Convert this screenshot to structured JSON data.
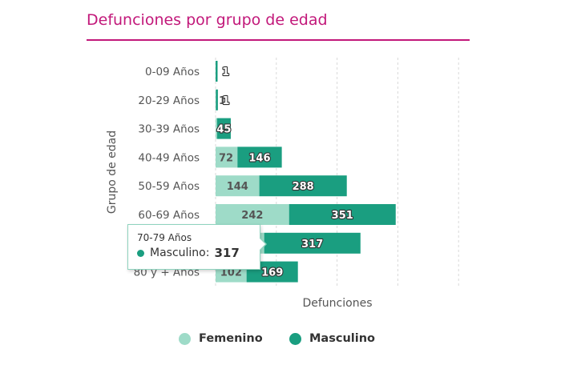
{
  "title": "Defunciones por grupo de edad",
  "colors": {
    "title": "#c2187a",
    "femenino": "#9edbc8",
    "masculino": "#1a9e80",
    "grid": "#d9d9d9"
  },
  "chart_data": {
    "type": "bar",
    "orientation": "horizontal",
    "stacked": true,
    "title": "Defunciones por grupo de edad",
    "xlabel": "Defunciones",
    "ylabel": "Grupo de edad",
    "categories": [
      "0-09 Años",
      "20-29 Años",
      "30-39 Años",
      "40-49 Años",
      "50-59 Años",
      "60-69 Años",
      "70-79 Años",
      "80 y + Años"
    ],
    "series": [
      {
        "name": "Femenino",
        "values": [
          null,
          1,
          5,
          72,
          144,
          242,
          160,
          102
        ],
        "labels": [
          "",
          "1",
          "",
          "72",
          "144",
          "242",
          "160",
          "102"
        ]
      },
      {
        "name": "Masculino",
        "values": [
          1,
          1,
          45,
          146,
          288,
          351,
          317,
          169
        ],
        "labels": [
          "1",
          "1",
          "45",
          "146",
          "288",
          "351",
          "317",
          "169"
        ]
      }
    ],
    "xlim": [
      0,
      800
    ],
    "grid": true,
    "legend": "bottom"
  },
  "tooltip": {
    "title": "70-79 Años",
    "series": "Masculino",
    "separator": ":",
    "value": "317"
  }
}
